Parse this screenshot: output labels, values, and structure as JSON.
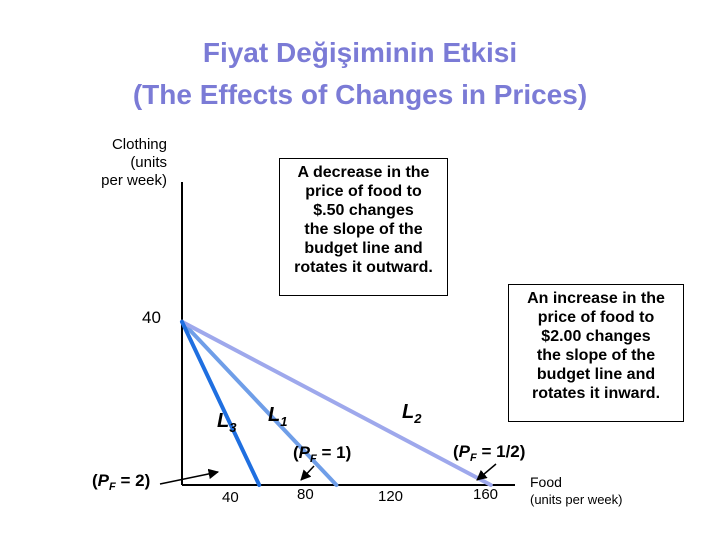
{
  "title": {
    "line1": "Fiyat Değişiminin Etkisi",
    "line2": "(The Effects of Changes in Prices)"
  },
  "y_axis_label": [
    "Clothing",
    "(units",
    "per week)"
  ],
  "x_axis_label": [
    "Food",
    "(units per week)"
  ],
  "y_tick": "40",
  "x_ticks": [
    "40",
    "80",
    "120",
    "160"
  ],
  "lines": [
    {
      "id": "L1",
      "letter": "L",
      "sub": "1",
      "x_intercept": 80,
      "color": "#6f9ee8"
    },
    {
      "id": "L2",
      "letter": "L",
      "sub": "2",
      "x_intercept": 160,
      "color": "#9ea8ec"
    },
    {
      "id": "L3",
      "letter": "L",
      "sub": "3",
      "x_intercept": 40,
      "color": "#1f6fe0"
    }
  ],
  "price_labels": [
    {
      "open": "(",
      "p": "P",
      "sub": "F",
      "rest": " = 2)"
    },
    {
      "open": "(",
      "p": "P",
      "sub": "F",
      "rest": " = 1)"
    },
    {
      "open": "(",
      "p": "P",
      "sub": "F",
      "rest": " = 1/2)"
    }
  ],
  "box_decrease": [
    "A decrease in the",
    "price of food to",
    "$.50 changes",
    "the slope of the",
    "budget line and",
    "rotates it outward."
  ],
  "box_increase": [
    "An increase in the",
    "price of food to",
    "$2.00 changes",
    "the slope of the",
    "budget line and",
    "rotates it inward."
  ],
  "chart_data": {
    "type": "line",
    "y_intercept": 40,
    "series": [
      {
        "name": "L1",
        "x": [
          0,
          80
        ],
        "y": [
          40,
          0
        ]
      },
      {
        "name": "L2",
        "x": [
          0,
          160
        ],
        "y": [
          40,
          0
        ]
      },
      {
        "name": "L3",
        "x": [
          0,
          40
        ],
        "y": [
          40,
          0
        ]
      }
    ]
  }
}
